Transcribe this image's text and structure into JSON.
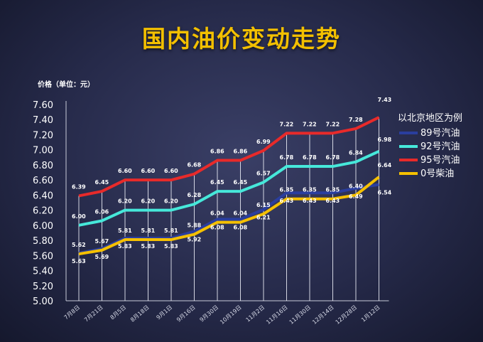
{
  "chart_data": {
    "type": "line",
    "title": "国内油价变动走势",
    "ylabel": "价格（单位：元）",
    "ylim": [
      5.0,
      7.6
    ],
    "yticks": [
      "5.00",
      "5.20",
      "5.40",
      "5.60",
      "5.80",
      "6.00",
      "6.20",
      "6.40",
      "6.60",
      "6.80",
      "7.00",
      "7.20",
      "7.40",
      "7.60"
    ],
    "categories": [
      "7月8日",
      "7月21日",
      "8月5日",
      "8月18日",
      "9月1日",
      "9月16日",
      "9月30日",
      "10月19日",
      "11月2日",
      "11月16日",
      "11月30日",
      "12月14日",
      "12月28日",
      "1月12日"
    ],
    "legend_title": "以北京地区为例",
    "legend_position": "right",
    "grid": false,
    "series": [
      {
        "name": "89号汽油",
        "color": "#2a3e9e",
        "values": [
          5.63,
          5.69,
          5.83,
          5.83,
          5.83,
          5.92,
          6.08,
          6.08,
          6.21,
          6.43,
          6.43,
          6.43,
          6.49,
          6.54
        ]
      },
      {
        "name": "92号汽油",
        "color": "#46e8da",
        "values": [
          6.0,
          6.06,
          6.2,
          6.2,
          6.2,
          6.28,
          6.45,
          6.45,
          6.57,
          6.78,
          6.78,
          6.78,
          6.84,
          6.98
        ]
      },
      {
        "name": "95号汽油",
        "color": "#e82a2a",
        "values": [
          6.39,
          6.45,
          6.6,
          6.6,
          6.6,
          6.68,
          6.86,
          6.86,
          6.99,
          7.22,
          7.22,
          7.22,
          7.28,
          7.43
        ]
      },
      {
        "name": "0号柴油",
        "color": "#f5c000",
        "values": [
          5.62,
          5.67,
          5.81,
          5.81,
          5.81,
          5.88,
          6.04,
          6.04,
          6.15,
          6.35,
          6.35,
          6.35,
          6.4,
          6.64
        ]
      }
    ],
    "labels": {
      "89号汽油": [
        "5.63",
        "5.69",
        "5.83",
        "5.83",
        "5.83",
        "5.92",
        "6.08",
        "6.08",
        "6.21",
        "6.43",
        "6.43",
        "6.43",
        "6.49",
        "6.54"
      ],
      "92号汽油": [
        "6.00",
        "6.06",
        "6.20",
        "6.20",
        "6.20",
        "6.28",
        "6.45",
        "6.45",
        "6.57",
        "6.78",
        "6.78",
        "6.78",
        "6.84",
        "6.98"
      ],
      "95号汽油": [
        "6.39",
        "6.45",
        "6.60",
        "6.60",
        "6.60",
        "6.68",
        "6.86",
        "6.86",
        "6.99",
        "7.22",
        "7.22",
        "7.22",
        "7.28",
        "7.43"
      ],
      "0号柴油": [
        "5.62",
        "5.67",
        "5.81",
        "5.81",
        "5.81",
        "5.88",
        "6.04",
        "6.04",
        "6.15",
        "6.35",
        "6.35",
        "6.35",
        "6.40",
        "6.64"
      ]
    }
  }
}
